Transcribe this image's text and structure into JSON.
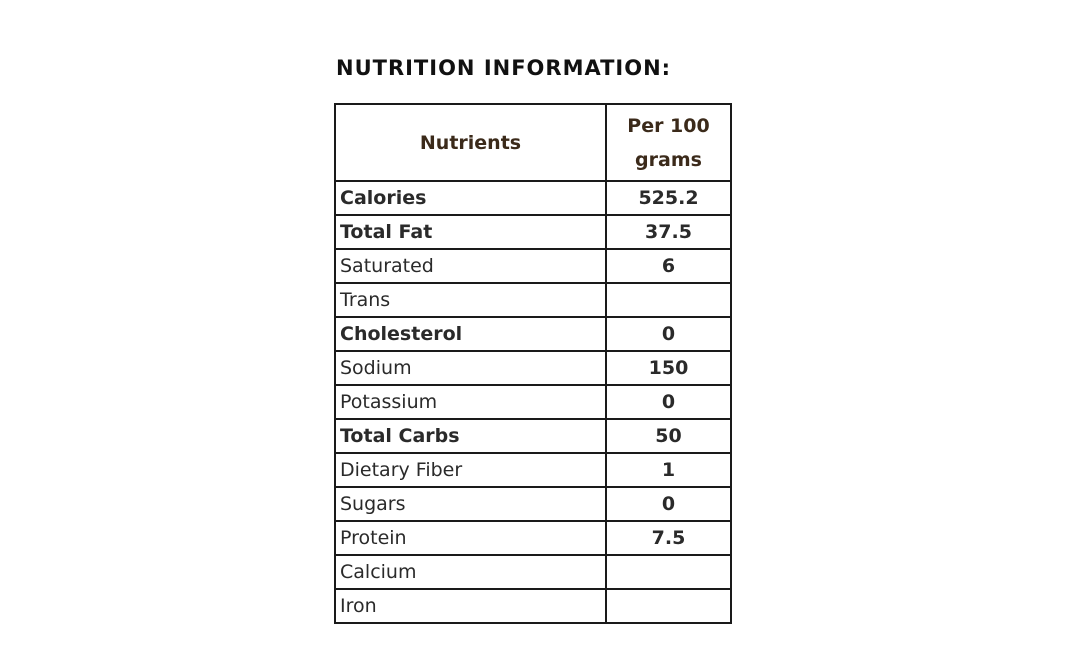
{
  "heading": "NUTRITION INFORMATION:",
  "table": {
    "header_nutrients": "Nutrients",
    "header_per": "Per 100 grams",
    "rows": [
      {
        "name": "Calories",
        "value": "525.2",
        "bold": true
      },
      {
        "name": "Total Fat",
        "value": "37.5",
        "bold": true
      },
      {
        "name": "Saturated",
        "value": "6",
        "bold": false
      },
      {
        "name": "Trans",
        "value": "",
        "bold": false
      },
      {
        "name": "Cholesterol",
        "value": "0",
        "bold": true
      },
      {
        "name": "Sodium",
        "value": "150",
        "bold": false
      },
      {
        "name": "Potassium",
        "value": "0",
        "bold": false
      },
      {
        "name": "Total Carbs",
        "value": "50",
        "bold": true
      },
      {
        "name": "Dietary Fiber",
        "value": "1",
        "bold": false
      },
      {
        "name": "Sugars",
        "value": "0",
        "bold": false
      },
      {
        "name": "Protein",
        "value": "7.5",
        "bold": false
      },
      {
        "name": "Calcium",
        "value": "",
        "bold": false
      },
      {
        "name": "Iron",
        "value": "",
        "bold": false
      }
    ]
  }
}
